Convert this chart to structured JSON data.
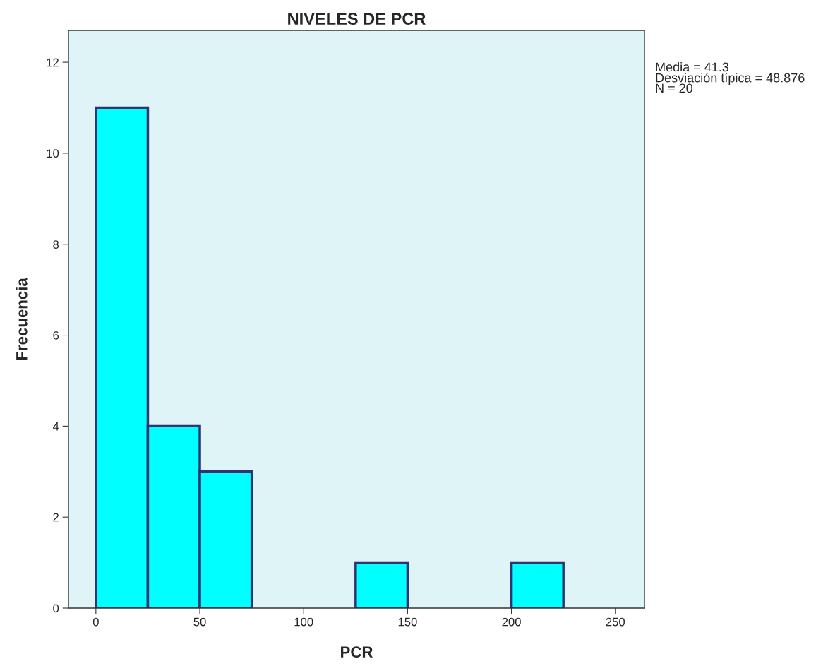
{
  "chart_data": {
    "type": "histogram",
    "title": "NIVELES DE PCR",
    "xlabel": "PCR",
    "ylabel": "Frecuencia",
    "bins": [
      0,
      25,
      50,
      75,
      100,
      125,
      150,
      175,
      200,
      225
    ],
    "values": [
      11,
      4,
      3,
      0,
      0,
      1,
      0,
      0,
      1
    ],
    "color": "#00ffff",
    "xlim": [
      -13.2,
      264
    ],
    "xticks": [
      0,
      50,
      100,
      150,
      200,
      250
    ],
    "ylim": [
      0,
      12.7
    ],
    "yticks": [
      0,
      2,
      4,
      6,
      8,
      10,
      12
    ],
    "grid": false,
    "legend": false,
    "annotations": [
      "Media = 41.3",
      "Desviación típica = 48.876",
      "N = 20"
    ]
  }
}
